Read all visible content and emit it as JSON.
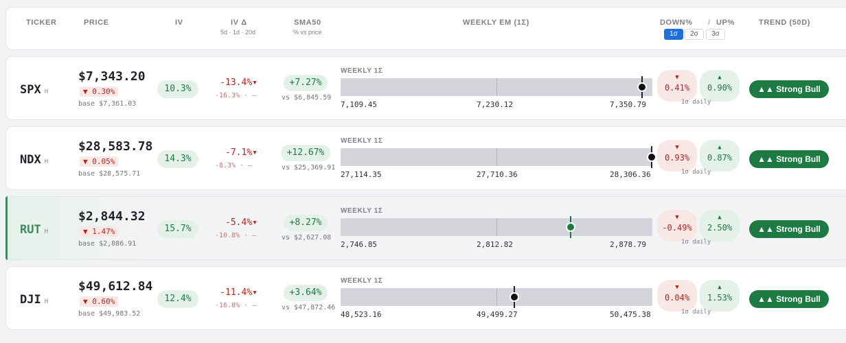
{
  "header": {
    "ticker": "TICKER",
    "price": "PRICE",
    "iv": "IV",
    "iv_delta": "IV Δ",
    "iv_delta_sub": "5d · 1d · 20d",
    "sma50": "SMA50",
    "sma50_sub": "% vs price",
    "weekly_em": "WEEKLY EM (1Σ)",
    "down": "DOWN%",
    "sep": "/",
    "up": "UP%",
    "sigma_buttons": [
      "1σ",
      "2σ",
      "3σ"
    ],
    "sigma_selected": "1σ",
    "trend": "TREND (50D)"
  },
  "rows": [
    {
      "ticker": "SPX",
      "flag": "H",
      "price": "$7,343.20",
      "change": "▼ 0.30%",
      "base": "base $7,361.03",
      "iv": "10.3%",
      "iv_delta": "-13.4%▾",
      "iv_delta_sub": "-16.3% · —",
      "sma": "+7.27%",
      "sma_vs": "vs $6,845.59",
      "em_label": "WEEKLY 1Σ",
      "em_low": "7,109.45",
      "em_mid": "7,230.12",
      "em_high": "7,350.79",
      "em_position": 0.968,
      "em_dot": "black",
      "down_arrow": "▼",
      "down": "0.41%",
      "up_arrow": "▲",
      "up": "0.90%",
      "daily": "1σ daily",
      "trend": "▲▲ Strong Bull"
    },
    {
      "ticker": "NDX",
      "flag": "H",
      "price": "$28,583.78",
      "change": "▼ 0.05%",
      "base": "base $28,575.71",
      "iv": "14.3%",
      "iv_delta": "-7.1%▾",
      "iv_delta_sub": "-8.3% · —",
      "sma": "+12.67%",
      "sma_vs": "vs $25,369.91",
      "em_label": "WEEKLY 1Σ",
      "em_low": "27,114.35",
      "em_mid": "27,710.36",
      "em_high": "28,306.36",
      "em_position": 0.997,
      "em_dot": "black",
      "down_arrow": "▼",
      "down": "0.93%",
      "up_arrow": "▲",
      "up": "0.87%",
      "daily": "1σ daily",
      "trend": "▲▲ Strong Bull"
    },
    {
      "ticker": "RUT",
      "flag": "H",
      "price": "$2,844.32",
      "change": "▼ 1.47%",
      "base": "base $2,886.91",
      "iv": "15.7%",
      "iv_delta": "-5.4%▾",
      "iv_delta_sub": "-10.8% · —",
      "sma": "+8.27%",
      "sma_vs": "vs $2,627.08",
      "em_label": "WEEKLY 1Σ",
      "em_low": "2,746.85",
      "em_mid": "2,812.82",
      "em_high": "2,878.79",
      "em_position": 0.738,
      "em_dot": "green",
      "down_arrow": "▼",
      "down": "-0.49%",
      "up_arrow": "▲",
      "up": "2.50%",
      "daily": "1σ daily",
      "trend": "▲▲ Strong Bull",
      "highlighted": true
    },
    {
      "ticker": "DJI",
      "flag": "H",
      "price": "$49,612.84",
      "change": "▼ 0.60%",
      "base": "base $49,983.52",
      "iv": "12.4%",
      "iv_delta": "-11.4%▾",
      "iv_delta_sub": "-16.8% · —",
      "sma": "+3.64%",
      "sma_vs": "vs $47,872.46",
      "em_label": "WEEKLY 1Σ",
      "em_low": "48,523.16",
      "em_mid": "49,499.27",
      "em_high": "50,475.38",
      "em_position": 0.557,
      "em_dot": "black",
      "down_arrow": "▼",
      "down": "0.04%",
      "up_arrow": "▲",
      "up": "1.53%",
      "daily": "1σ daily",
      "trend": "▲▲ Strong Bull"
    }
  ]
}
